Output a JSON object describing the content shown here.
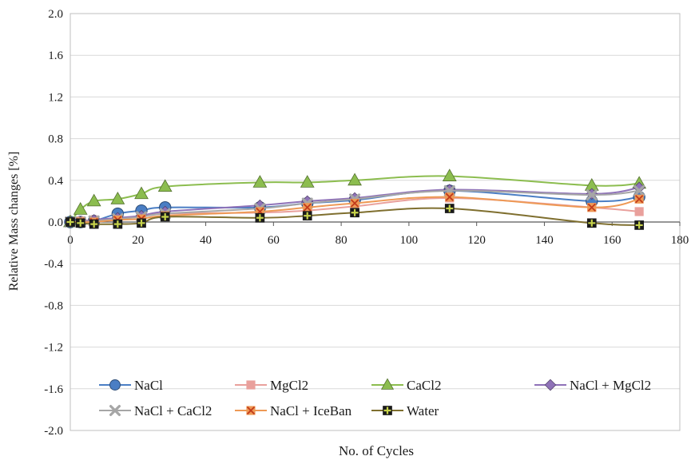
{
  "chart_data": {
    "type": "line",
    "title": "",
    "xlabel": "No. of Cycles",
    "ylabel": "Relative Mass changes [%]",
    "xlim": [
      0,
      180
    ],
    "ylim": [
      -2.0,
      2.0
    ],
    "x_ticks": [
      0,
      20,
      40,
      60,
      80,
      100,
      120,
      140,
      160,
      180
    ],
    "y_ticks": [
      2.0,
      1.6,
      1.2,
      0.8,
      0.4,
      0.0,
      -0.4,
      -0.8,
      -1.2,
      -1.6,
      -2.0
    ],
    "x_tick_labels": [
      "0",
      "20",
      "40",
      "60",
      "80",
      "100",
      "120",
      "140",
      "160",
      "180"
    ],
    "y_tick_labels": [
      "2.0",
      "1.6",
      "1.2",
      "0.8",
      "0.4",
      "0.0",
      "-0.4",
      "-0.8",
      "-1.2",
      "-1.6",
      "-2.0"
    ],
    "grid": "horizontal",
    "legend_position": "bottom-inside",
    "x": [
      0,
      3,
      7,
      14,
      21,
      28,
      56,
      70,
      84,
      112,
      154,
      168
    ],
    "series": [
      {
        "name": "NaCl",
        "marker": "circle",
        "color": "#4a7ec4",
        "values": [
          0.0,
          0.0,
          0.01,
          0.08,
          0.11,
          0.14,
          0.14,
          0.18,
          0.21,
          0.3,
          0.2,
          0.24
        ]
      },
      {
        "name": "MgCl2",
        "marker": "square",
        "color": "#e9a09c",
        "values": [
          0.0,
          0.01,
          0.02,
          0.03,
          0.05,
          0.08,
          0.09,
          0.11,
          0.15,
          0.23,
          0.14,
          0.1
        ]
      },
      {
        "name": "CaCl2",
        "marker": "triangle",
        "color": "#8cbd4f",
        "values": [
          0.0,
          0.12,
          0.2,
          0.22,
          0.27,
          0.34,
          0.38,
          0.38,
          0.4,
          0.44,
          0.35,
          0.37
        ]
      },
      {
        "name": "NaCl + MgCl2",
        "marker": "diamond",
        "color": "#8f72b8",
        "values": [
          0.0,
          0.0,
          0.02,
          0.04,
          0.06,
          0.1,
          0.16,
          0.2,
          0.23,
          0.31,
          0.27,
          0.33
        ]
      },
      {
        "name": "NaCl + CaCl2",
        "marker": "x",
        "color": "#a6a6a6",
        "values": [
          0.0,
          0.0,
          0.01,
          0.03,
          0.05,
          0.08,
          0.13,
          0.18,
          0.22,
          0.3,
          0.26,
          0.3
        ]
      },
      {
        "name": "NaCl + IceBan",
        "marker": "asterisk",
        "color": "#ee9955",
        "values": [
          0.0,
          0.0,
          0.0,
          0.02,
          0.03,
          0.06,
          0.1,
          0.14,
          0.18,
          0.24,
          0.14,
          0.22
        ]
      },
      {
        "name": "Water",
        "marker": "plus-square",
        "color": "#7f6f2f",
        "values": [
          0.0,
          -0.01,
          -0.02,
          -0.02,
          -0.01,
          0.05,
          0.04,
          0.06,
          0.09,
          0.13,
          -0.01,
          -0.03
        ]
      }
    ]
  }
}
